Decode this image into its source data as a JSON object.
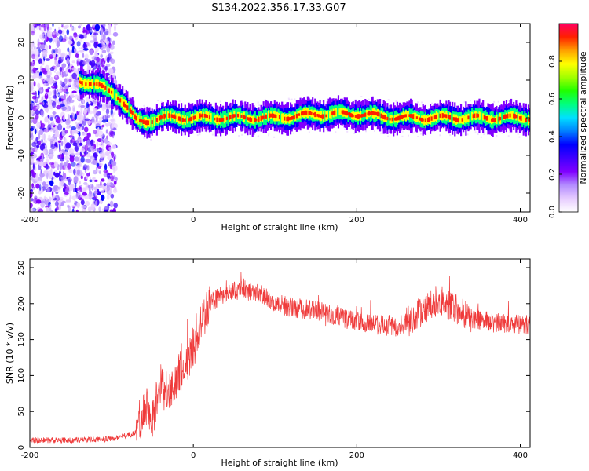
{
  "figure": {
    "title": "S134.2022.356.17.33.G07"
  },
  "colors": {
    "snr_line": "#ef3b3b",
    "colormap": [
      "#ffffff",
      "#e6ccff",
      "#b38cff",
      "#8000ff",
      "#3f00ff",
      "#0000ff",
      "#0080ff",
      "#00e0ff",
      "#00ff80",
      "#20ff00",
      "#a0ff00",
      "#ffff00",
      "#ffa000",
      "#ff2000",
      "#ff0060"
    ]
  },
  "chart_data": [
    {
      "type": "heatmap",
      "xlabel": "Height of straight line (km)",
      "ylabel": "Frequency (Hz)",
      "xlim": [
        -200,
        412
      ],
      "ylim": [
        -25,
        25
      ],
      "xticks": [
        "-200",
        "0",
        "200",
        "400"
      ],
      "yticks": [
        "-20",
        "-10",
        "0",
        "10",
        "20"
      ],
      "colorbar": {
        "label": "Normalized spectral amplitude",
        "range": [
          0,
          1
        ],
        "ticks": [
          "0.0",
          "0.2",
          "0.4",
          "0.6",
          "0.8"
        ]
      },
      "ridge": {
        "x": [
          -140,
          -120,
          -100,
          -90,
          -80,
          -70,
          -60,
          -40,
          -20,
          0,
          50,
          100,
          150,
          200,
          250,
          300,
          350,
          412
        ],
        "y": [
          10,
          8.5,
          7,
          5,
          2,
          -1,
          -1,
          0,
          0,
          0,
          0,
          0,
          1,
          1,
          0,
          0,
          0,
          0
        ]
      },
      "noise_region": [
        -200,
        -95
      ]
    },
    {
      "type": "line",
      "xlabel": "Height of straight line (km)",
      "ylabel": "SNR (10 * v/v)",
      "xlim": [
        -200,
        412
      ],
      "ylim": [
        0,
        262
      ],
      "xticks": [
        "-200",
        "0",
        "200",
        "400"
      ],
      "yticks": [
        "0",
        "50",
        "100",
        "150",
        "200",
        "250"
      ],
      "series": [
        {
          "x": [
            -200,
            -150,
            -100,
            -70,
            -60,
            -50,
            -40,
            -30,
            -20,
            -10,
            0,
            10,
            20,
            40,
            60,
            80,
            100,
            120,
            150,
            200,
            230,
            250,
            270,
            290,
            300,
            320,
            340,
            360,
            380,
            412
          ],
          "y": [
            10,
            10,
            12,
            20,
            60,
            40,
            90,
            70,
            100,
            110,
            140,
            170,
            200,
            215,
            220,
            215,
            200,
            195,
            190,
            175,
            170,
            168,
            180,
            200,
            205,
            195,
            180,
            175,
            172,
            170
          ]
        }
      ]
    }
  ]
}
